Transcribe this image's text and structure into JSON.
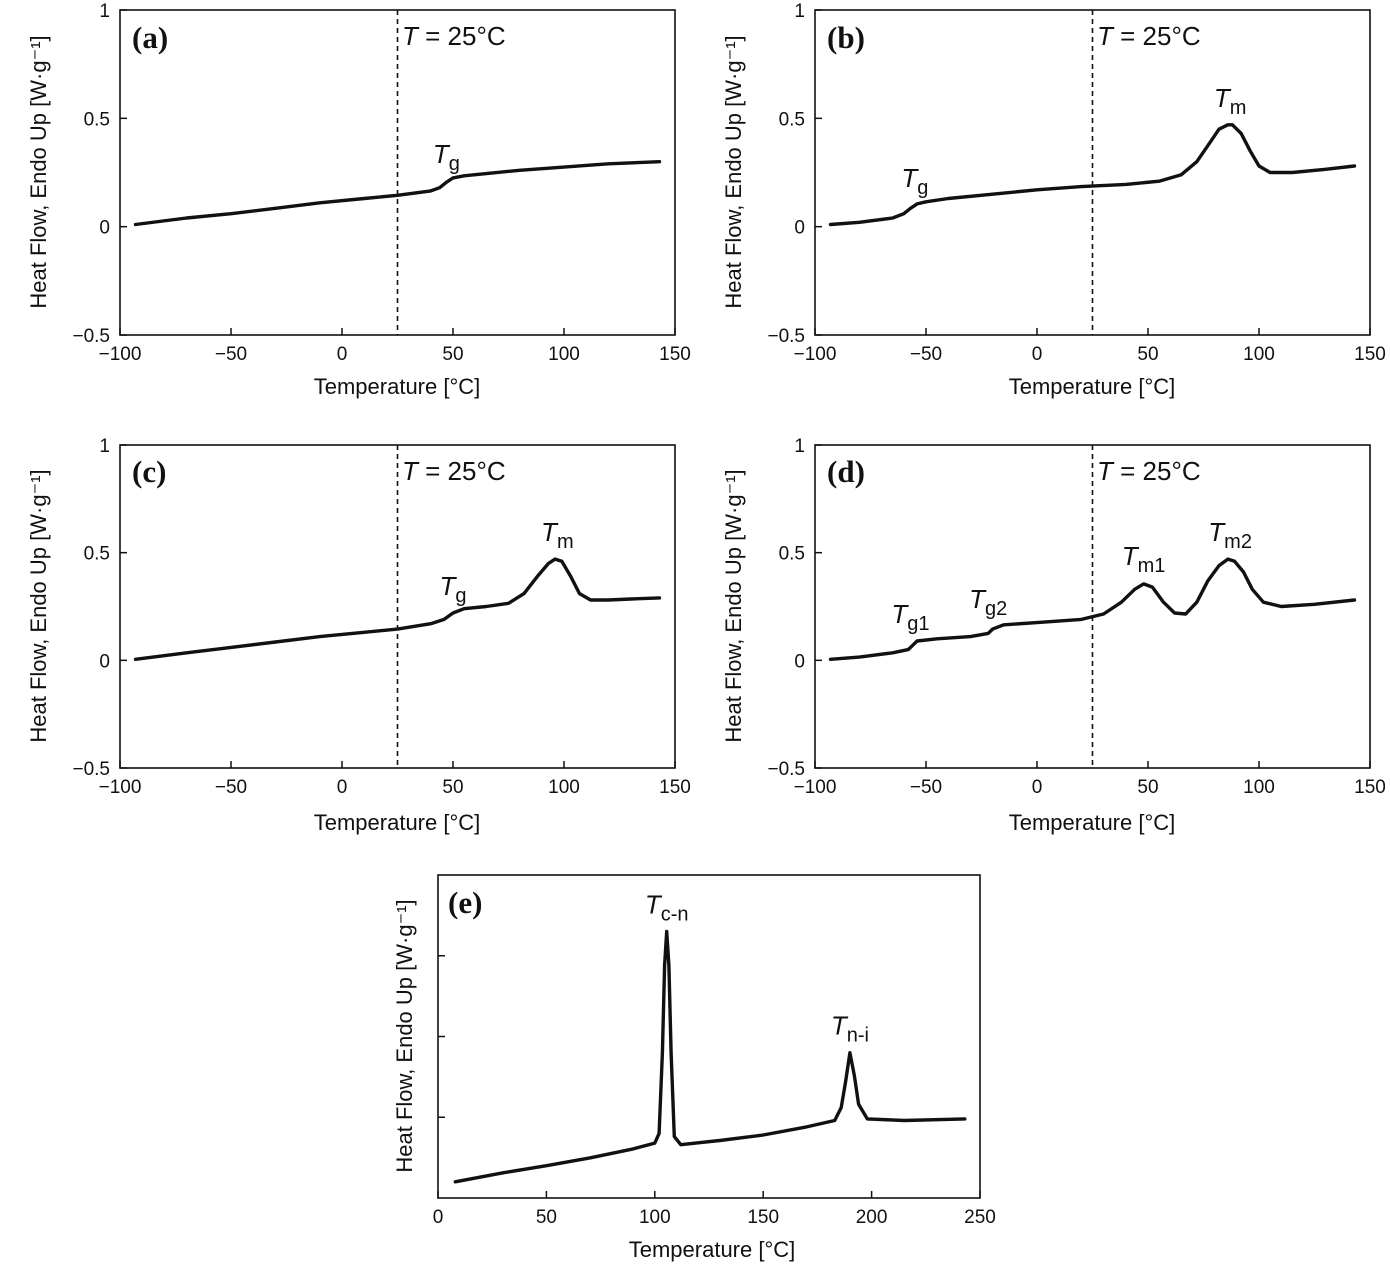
{
  "chart_data": [
    {
      "type": "line",
      "panel": "(a)",
      "xlabel": "Temperature [°C]",
      "ylabel": "Heat Flow, Endo Up [W·g⁻¹]",
      "xlim": [
        -100,
        150
      ],
      "ylim": [
        -0.5,
        1
      ],
      "xticks": [
        "−100",
        "−50",
        "0",
        "50",
        "100",
        "150"
      ],
      "yticks": [
        "−0.5",
        "0",
        "0.5",
        "1"
      ],
      "vline": {
        "x": 25,
        "label_italic": "T",
        "label_rest": " = 25°C"
      },
      "annotations": [
        {
          "main": "T",
          "sub": "g",
          "x": 47,
          "y": 0.21
        }
      ],
      "x": [
        -93,
        -70,
        -50,
        -30,
        -10,
        10,
        25,
        40,
        44,
        47,
        50,
        55,
        60,
        80,
        100,
        120,
        143
      ],
      "y": [
        0.01,
        0.04,
        0.06,
        0.085,
        0.11,
        0.13,
        0.145,
        0.165,
        0.18,
        0.205,
        0.225,
        0.235,
        0.24,
        0.26,
        0.275,
        0.29,
        0.3
      ]
    },
    {
      "type": "line",
      "panel": "(b)",
      "xlabel": "Temperature [°C]",
      "ylabel": "Heat Flow, Endo Up [W·g⁻¹]",
      "xlim": [
        -100,
        150
      ],
      "ylim": [
        -0.5,
        1
      ],
      "xticks": [
        "−100",
        "−50",
        "0",
        "50",
        "100",
        "150"
      ],
      "yticks": [
        "−0.5",
        "0",
        "0.5",
        "1"
      ],
      "vline": {
        "x": 25,
        "label_italic": "T",
        "label_rest": " = 25°C"
      },
      "annotations": [
        {
          "main": "T",
          "sub": "g",
          "x": -55,
          "y": 0.1
        },
        {
          "main": "T",
          "sub": "m",
          "x": 87,
          "y": 0.47
        }
      ],
      "x": [
        -93,
        -80,
        -65,
        -60,
        -57,
        -54,
        -50,
        -40,
        -20,
        0,
        20,
        40,
        55,
        65,
        72,
        78,
        82,
        86,
        88,
        92,
        96,
        100,
        105,
        115,
        130,
        143
      ],
      "y": [
        0.01,
        0.02,
        0.04,
        0.06,
        0.085,
        0.105,
        0.115,
        0.13,
        0.15,
        0.17,
        0.185,
        0.195,
        0.21,
        0.24,
        0.3,
        0.39,
        0.45,
        0.47,
        0.47,
        0.43,
        0.35,
        0.28,
        0.25,
        0.25,
        0.265,
        0.28
      ]
    },
    {
      "type": "line",
      "panel": "(c)",
      "xlabel": "Temperature [°C]",
      "ylabel": "Heat Flow, Endo Up [W·g⁻¹]",
      "xlim": [
        -100,
        150
      ],
      "ylim": [
        -0.5,
        1
      ],
      "xticks": [
        "−100",
        "−50",
        "0",
        "50",
        "100",
        "150"
      ],
      "yticks": [
        "−0.5",
        "0",
        "0.5",
        "1"
      ],
      "vline": {
        "x": 25,
        "label_italic": "T",
        "label_rest": " = 25°C"
      },
      "annotations": [
        {
          "main": "T",
          "sub": "g",
          "x": 50,
          "y": 0.22
        },
        {
          "main": "T",
          "sub": "m",
          "x": 97,
          "y": 0.47
        }
      ],
      "x": [
        -93,
        -70,
        -50,
        -30,
        -10,
        10,
        25,
        40,
        46,
        50,
        55,
        65,
        75,
        82,
        88,
        93,
        96,
        99,
        103,
        107,
        112,
        120,
        130,
        143
      ],
      "y": [
        0.005,
        0.035,
        0.06,
        0.085,
        0.11,
        0.13,
        0.145,
        0.17,
        0.19,
        0.22,
        0.24,
        0.25,
        0.265,
        0.31,
        0.39,
        0.45,
        0.47,
        0.46,
        0.39,
        0.31,
        0.28,
        0.28,
        0.285,
        0.29
      ]
    },
    {
      "type": "line",
      "panel": "(d)",
      "xlabel": "Temperature [°C]",
      "ylabel": "Heat Flow, Endo Up [W·g⁻¹]",
      "xlim": [
        -100,
        150
      ],
      "ylim": [
        -0.5,
        1
      ],
      "xticks": [
        "−100",
        "−50",
        "0",
        "50",
        "100",
        "150"
      ],
      "yticks": [
        "−0.5",
        "0",
        "0.5",
        "1"
      ],
      "vline": {
        "x": 25,
        "label_italic": "T",
        "label_rest": " = 25°C"
      },
      "annotations": [
        {
          "main": "T",
          "sub": "g1",
          "x": -57,
          "y": 0.09
        },
        {
          "main": "T",
          "sub": "g2",
          "x": -22,
          "y": 0.16
        },
        {
          "main": "T",
          "sub": "m1",
          "x": 48,
          "y": 0.36
        },
        {
          "main": "T",
          "sub": "m2",
          "x": 87,
          "y": 0.47
        }
      ],
      "x": [
        -93,
        -80,
        -65,
        -58,
        -56,
        -54,
        -45,
        -30,
        -22,
        -20,
        -15,
        0,
        20,
        30,
        38,
        44,
        48,
        52,
        57,
        62,
        67,
        72,
        77,
        82,
        86,
        89,
        93,
        97,
        102,
        110,
        125,
        143
      ],
      "y": [
        0.005,
        0.015,
        0.035,
        0.05,
        0.07,
        0.09,
        0.1,
        0.11,
        0.125,
        0.145,
        0.165,
        0.175,
        0.19,
        0.215,
        0.27,
        0.33,
        0.355,
        0.34,
        0.27,
        0.22,
        0.215,
        0.27,
        0.37,
        0.44,
        0.47,
        0.46,
        0.41,
        0.33,
        0.27,
        0.25,
        0.26,
        0.28
      ]
    },
    {
      "type": "line",
      "panel": "(e)",
      "xlabel": "Temperature [°C]",
      "ylabel": "Heat Flow, Endo Up [W·g⁻¹]",
      "xlim": [
        0,
        250
      ],
      "xticks": [
        "0",
        "50",
        "100",
        "150",
        "200",
        "250"
      ],
      "yticks": [
        "",
        "",
        ""
      ],
      "annotations": [
        {
          "main": "T",
          "sub": "c-n",
          "x": 105.5,
          "y": 0.825
        },
        {
          "main": "T",
          "sub": "n-i",
          "x": 190,
          "y": 0.45
        }
      ],
      "x": [
        8,
        30,
        50,
        70,
        90,
        100,
        102,
        103.5,
        104.5,
        105.5,
        106.5,
        107.5,
        109,
        112,
        130,
        150,
        170,
        183,
        186,
        188,
        190,
        192,
        194,
        198,
        215,
        243
      ],
      "y": [
        0.05,
        0.078,
        0.1,
        0.124,
        0.152,
        0.17,
        0.2,
        0.45,
        0.72,
        0.825,
        0.72,
        0.45,
        0.19,
        0.165,
        0.178,
        0.195,
        0.22,
        0.24,
        0.28,
        0.36,
        0.45,
        0.38,
        0.29,
        0.245,
        0.24,
        0.245
      ]
    }
  ]
}
